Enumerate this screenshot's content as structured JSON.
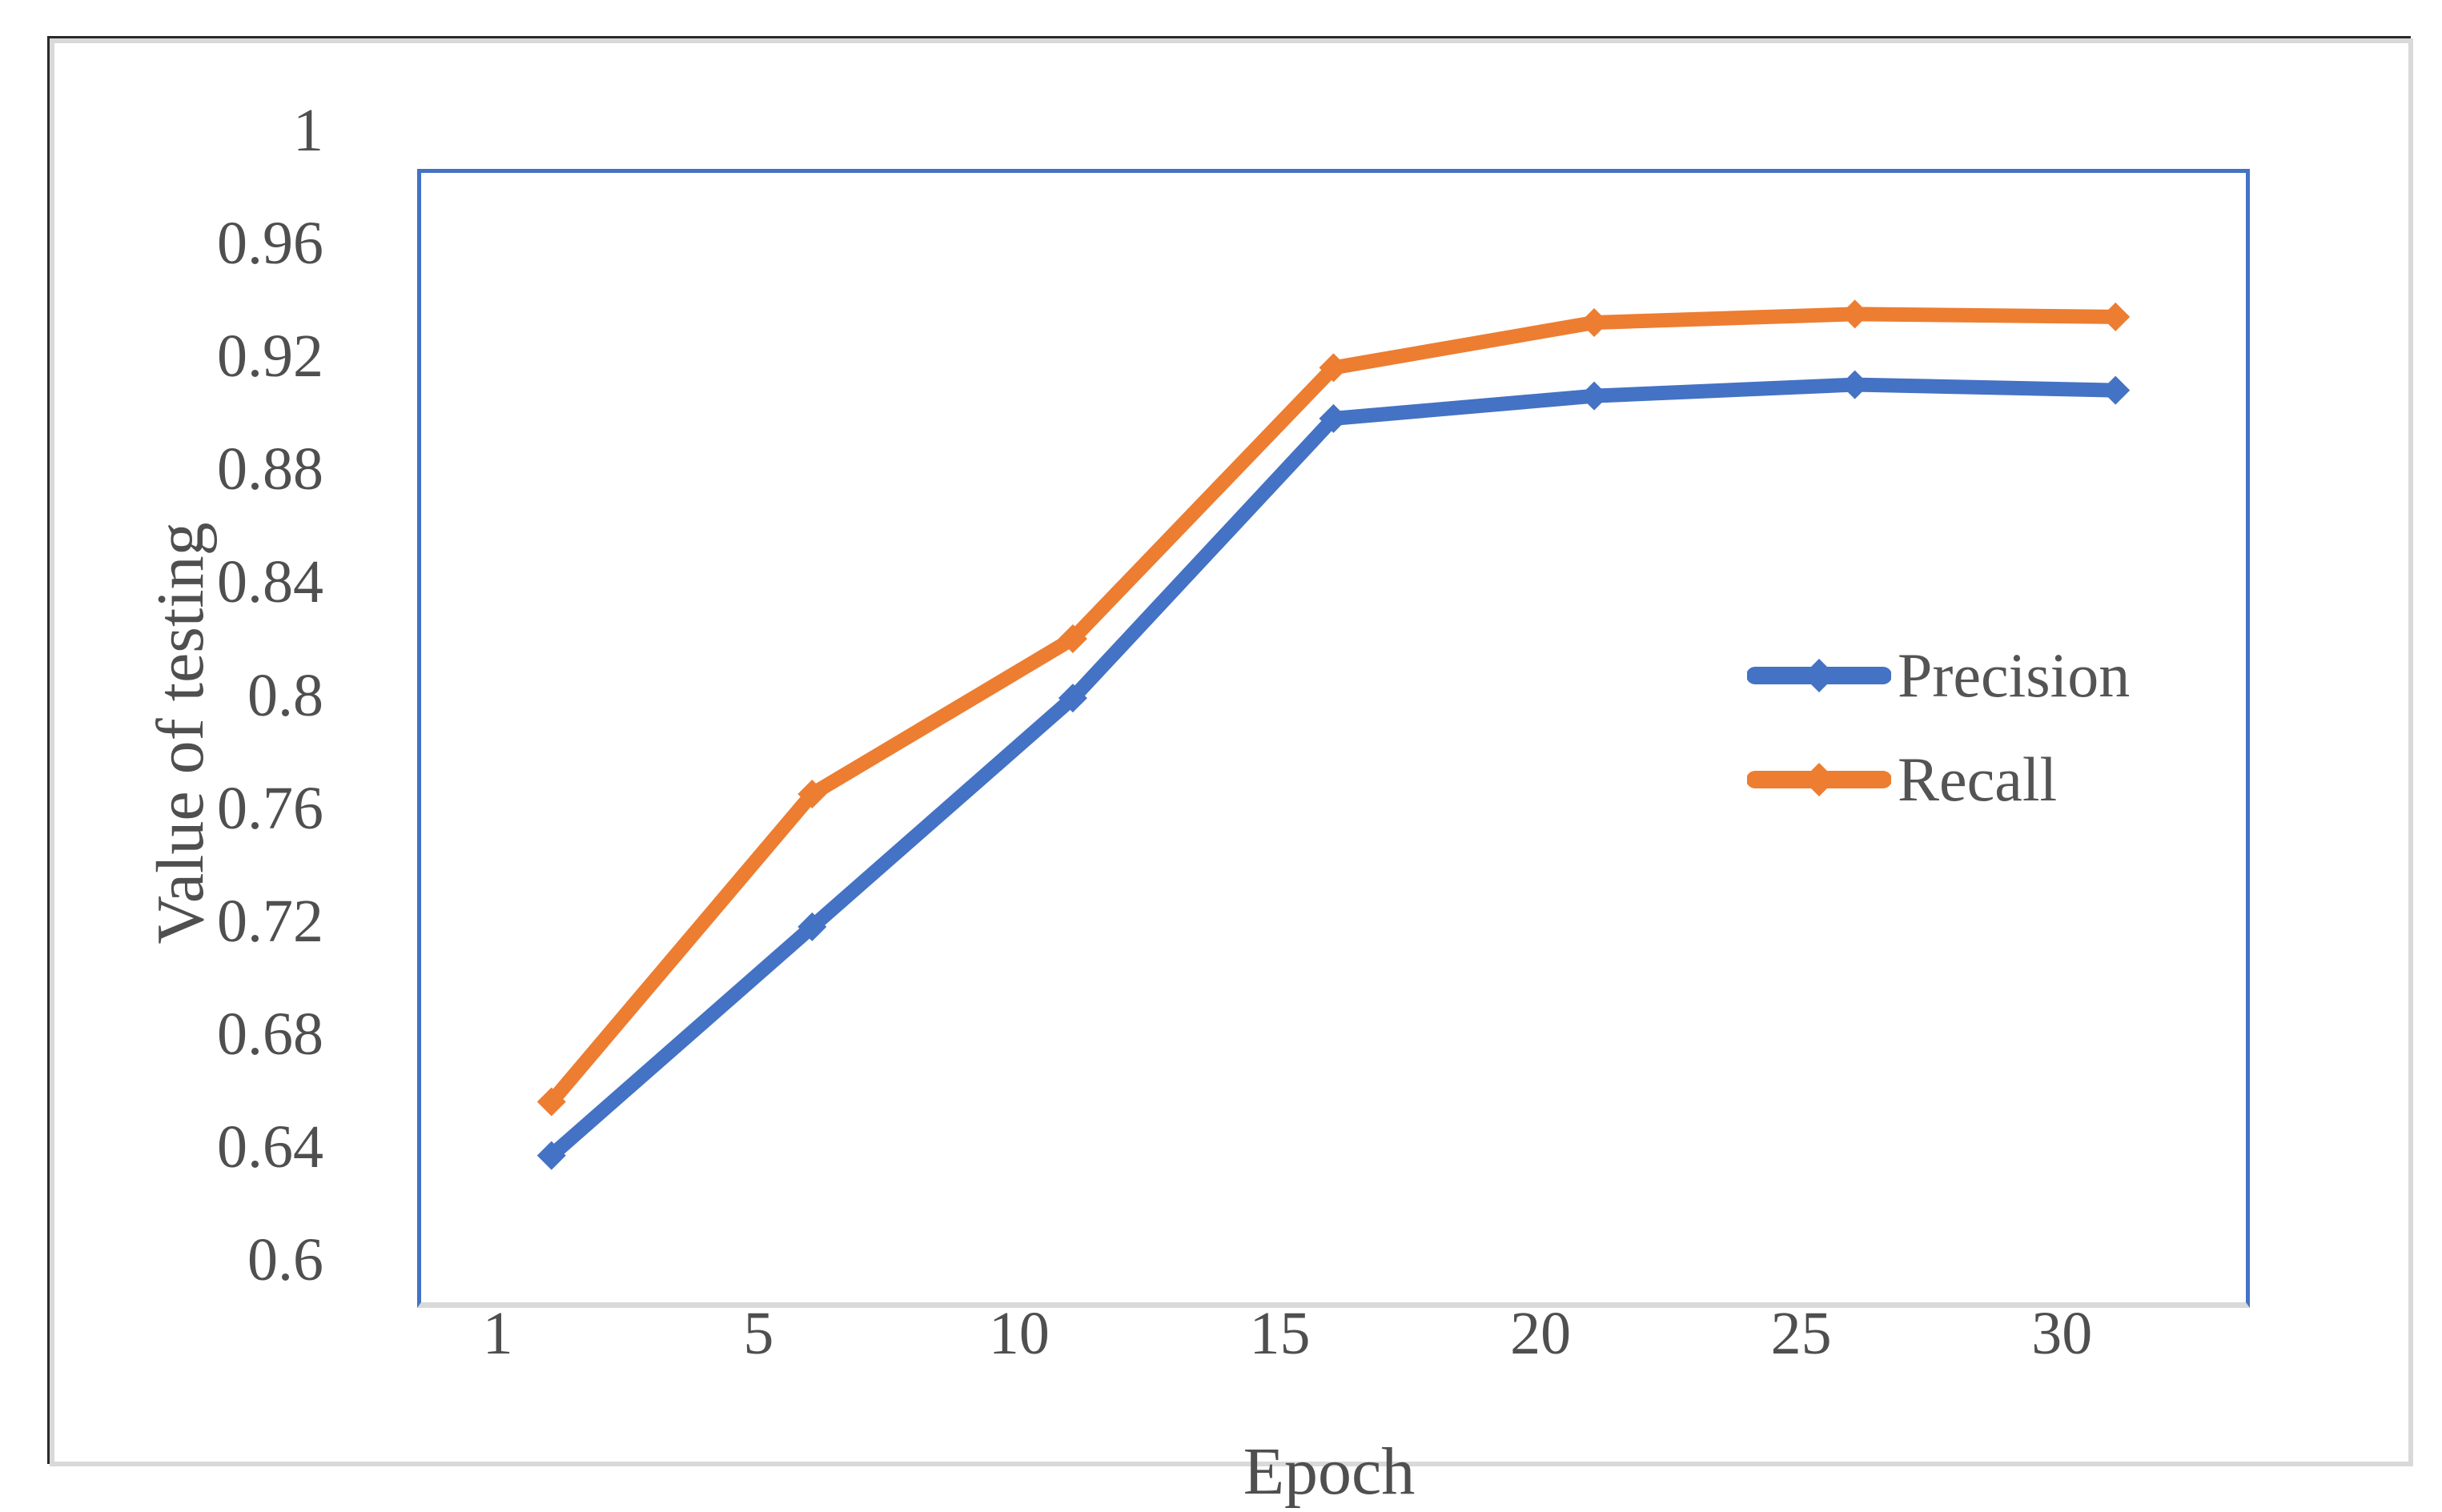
{
  "chart_data": {
    "type": "line",
    "title": "",
    "xlabel": "Epoch",
    "ylabel": "Value of testing",
    "categories": [
      "1",
      "5",
      "10",
      "15",
      "20",
      "25",
      "30"
    ],
    "series": [
      {
        "name": "Precision",
        "color": "#4472c4",
        "values": [
          0.652,
          0.733,
          0.814,
          0.913,
          0.921,
          0.925,
          0.923
        ]
      },
      {
        "name": "Recall",
        "color": "#ed7d31",
        "values": [
          0.671,
          0.78,
          0.835,
          0.931,
          0.947,
          0.95,
          0.949
        ]
      }
    ],
    "ylim": [
      0.6,
      1.0
    ],
    "yticks": [
      "1",
      "0.96",
      "0.92",
      "0.88",
      "0.84",
      "0.8",
      "0.76",
      "0.72",
      "0.68",
      "0.64",
      "0.6"
    ],
    "grid": false,
    "legend_position": "right-middle",
    "marker": "diamond",
    "colors": {
      "plot_border": "#4472c4",
      "baseline": "#d9d9d9",
      "text": "#4f4f4f",
      "figure_border": "#d9d9d9"
    }
  }
}
